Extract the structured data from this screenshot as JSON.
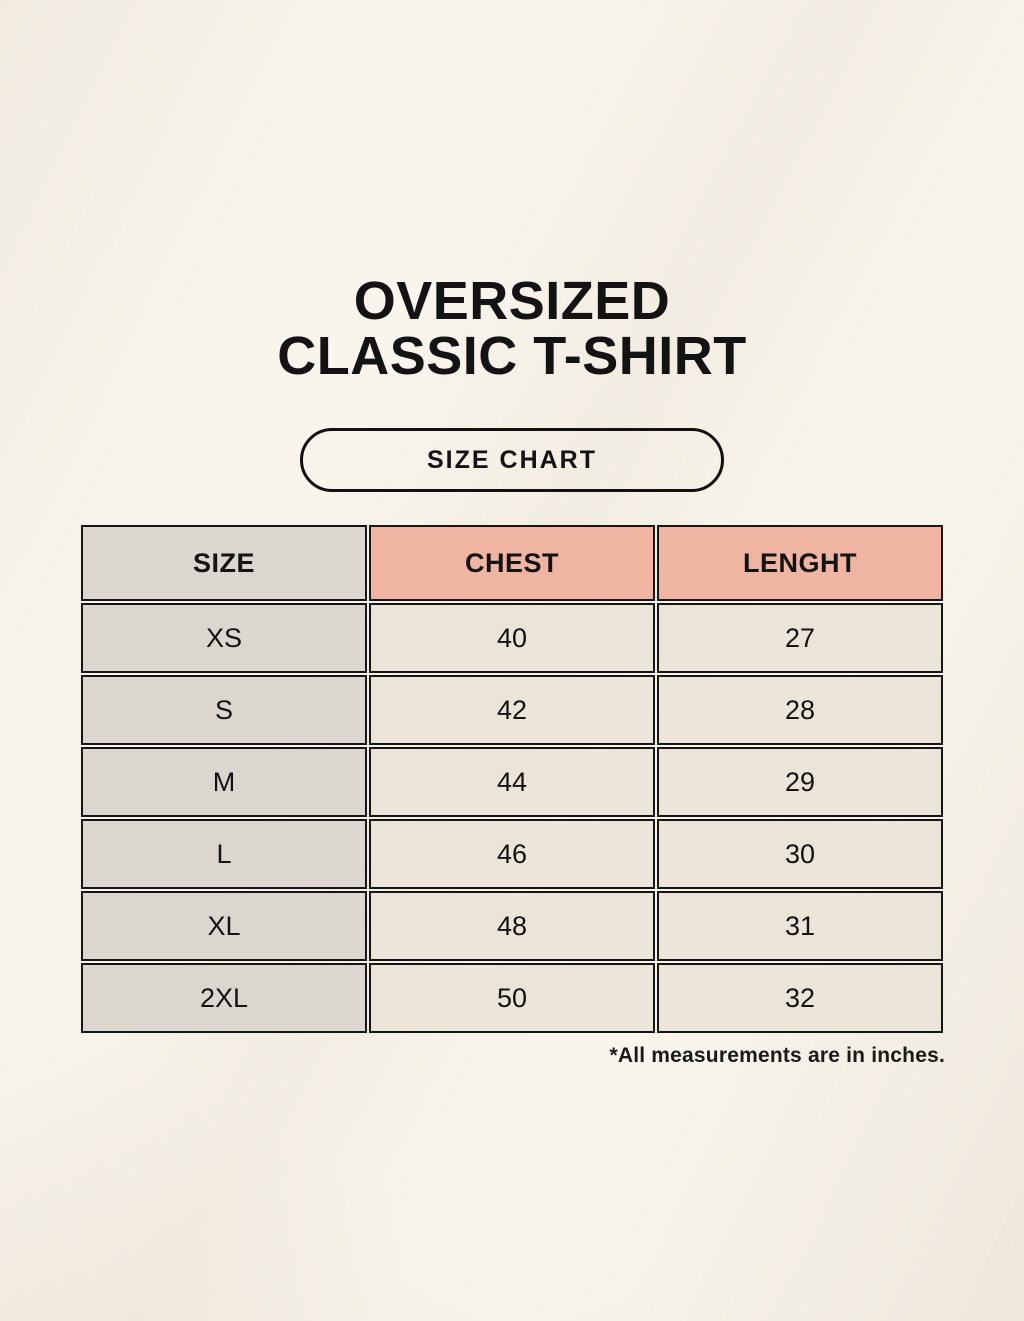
{
  "page": {
    "title_line1": "OVERSIZED",
    "title_line2": "CLASSIC T-SHIRT",
    "size_chart_label": "SIZE CHART",
    "footnote": "*All measurements are in inches."
  },
  "chart_data": {
    "type": "table",
    "title": "OVERSIZED CLASSIC T-SHIRT",
    "subtitle": "SIZE CHART",
    "columns": [
      "SIZE",
      "CHEST",
      "LENGHT"
    ],
    "units": "inches",
    "rows": [
      {
        "size": "XS",
        "chest": 40,
        "length": 27
      },
      {
        "size": "S",
        "chest": 42,
        "length": 28
      },
      {
        "size": "M",
        "chest": 44,
        "length": 29
      },
      {
        "size": "L",
        "chest": 46,
        "length": 30
      },
      {
        "size": "XL",
        "chest": 48,
        "length": 31
      },
      {
        "size": "2XL",
        "chest": 50,
        "length": 32
      }
    ]
  },
  "colors": {
    "background": "#f9f5ed",
    "size_column_bg": "#dcd6d0",
    "measure_header_bg": "#f0b4a3",
    "data_cell_bg": "#ebe5d9",
    "border": "#161616",
    "text": "#131313"
  }
}
